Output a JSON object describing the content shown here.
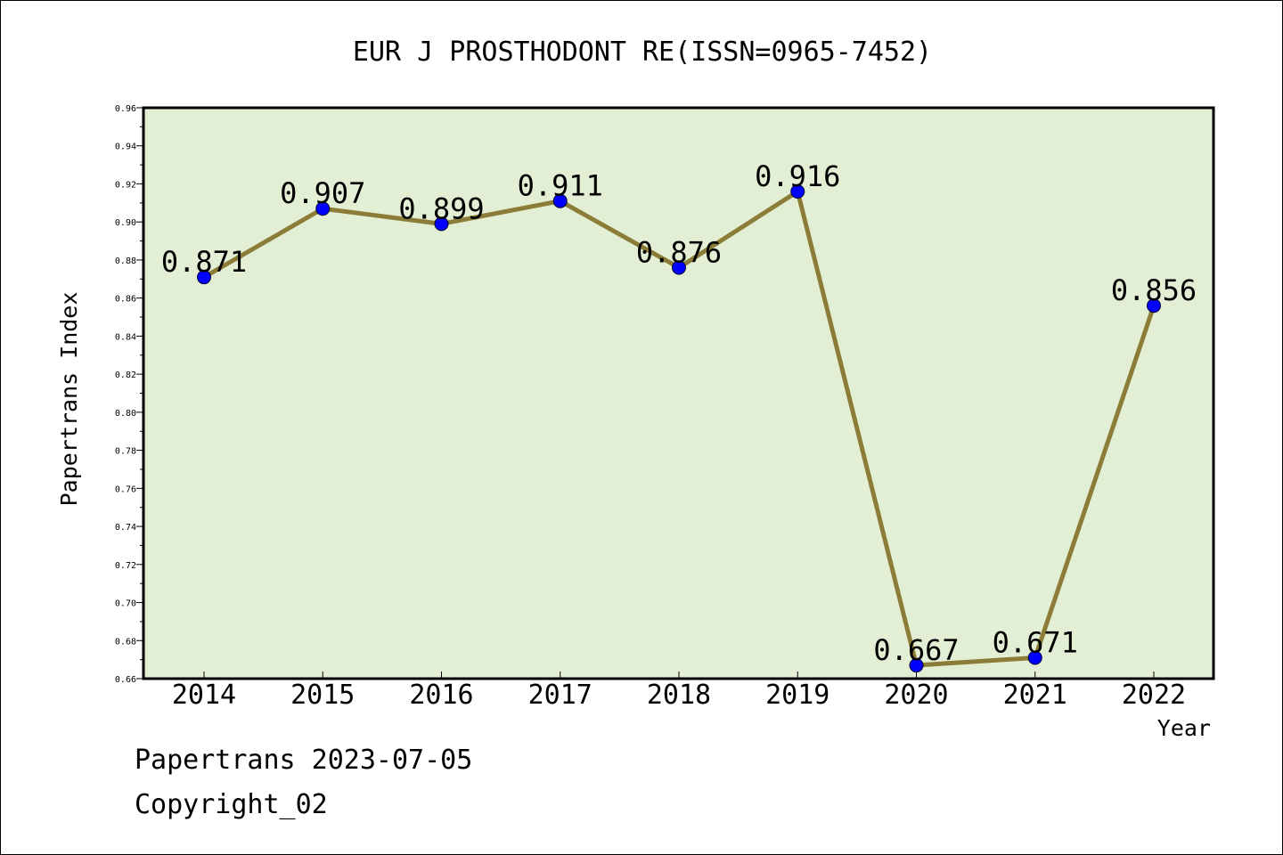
{
  "chart_data": {
    "type": "line",
    "title": "EUR J PROSTHODONT RE(ISSN=0965-7452)",
    "xlabel": "Year",
    "ylabel": "Papertrans Index",
    "categories": [
      "2014",
      "2015",
      "2016",
      "2017",
      "2018",
      "2019",
      "2020",
      "2021",
      "2022"
    ],
    "values": [
      0.871,
      0.907,
      0.899,
      0.911,
      0.876,
      0.916,
      0.667,
      0.671,
      0.856
    ],
    "data_labels": [
      "0.871",
      "0.907",
      "0.899",
      "0.911",
      "0.876",
      "0.916",
      "0.667",
      "0.671",
      "0.856"
    ],
    "ylim": [
      0.66,
      0.96
    ],
    "yticks": [
      "0.66",
      "0.68",
      "0.70",
      "0.72",
      "0.74",
      "0.76",
      "0.78",
      "0.80",
      "0.82",
      "0.84",
      "0.86",
      "0.88",
      "0.90",
      "0.92",
      "0.94",
      "0.96"
    ],
    "grid": false,
    "colors": {
      "plot_background": "#e2efd5",
      "line": "#8b7d37",
      "marker": "#0000ff"
    }
  },
  "footer": {
    "line1": "Papertrans 2023-07-05",
    "line2": "Copyright_02"
  }
}
